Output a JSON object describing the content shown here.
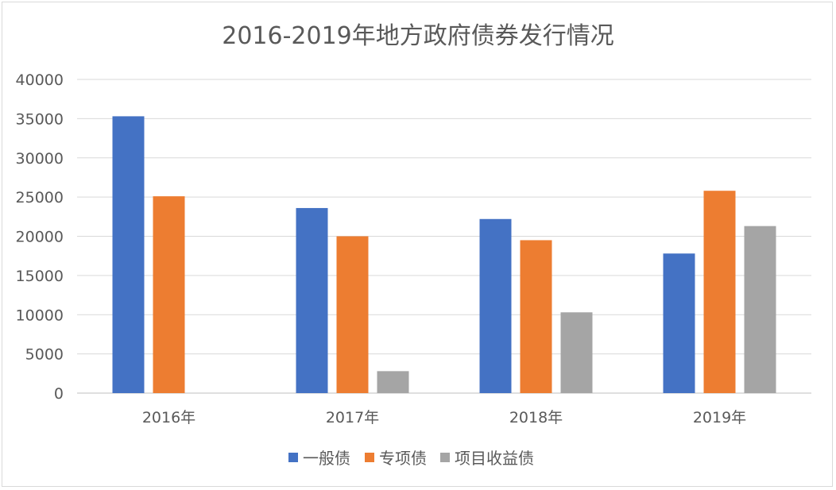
{
  "chart_data": {
    "type": "bar",
    "title": "2016-2019年地方政府债券发行情况",
    "categories": [
      "2016年",
      "2017年",
      "2018年",
      "2019年"
    ],
    "series": [
      {
        "name": "一般债",
        "color": "#4472C4",
        "values": [
          35300,
          23600,
          22200,
          17800
        ]
      },
      {
        "name": "专项债",
        "color": "#ED7D31",
        "values": [
          25100,
          20000,
          19500,
          25800
        ]
      },
      {
        "name": "项目收益债",
        "color": "#A5A5A5",
        "values": [
          null,
          2800,
          10300,
          21300
        ]
      }
    ],
    "ylim": [
      0,
      40000
    ],
    "yticks": [
      "0",
      "5000",
      "10000",
      "15000",
      "20000",
      "25000",
      "30000",
      "35000",
      "40000"
    ],
    "grid": true,
    "legend": "bottom"
  }
}
